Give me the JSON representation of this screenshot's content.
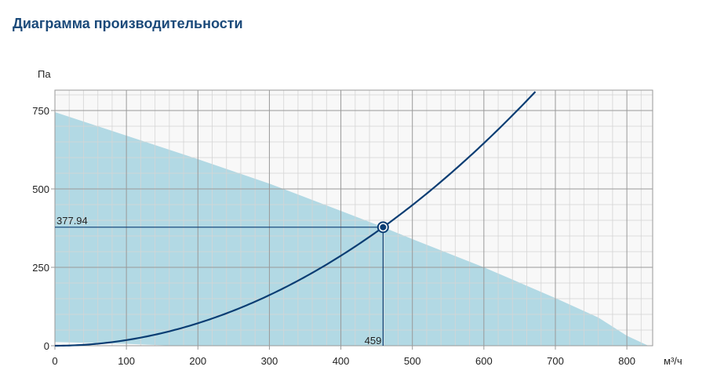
{
  "title": "Диаграмма производительности",
  "chart_data": {
    "type": "area",
    "ylabel": "Па",
    "xlabel": "м³/ч",
    "xlim": [
      0,
      835
    ],
    "ylim": [
      0,
      815
    ],
    "xticks": [
      0,
      100,
      200,
      300,
      400,
      500,
      600,
      700,
      800
    ],
    "yticks": [
      0,
      250,
      500,
      750
    ],
    "grid": true,
    "fan_curve": {
      "upper": {
        "x": [
          0,
          100,
          200,
          300,
          400,
          459,
          500,
          600,
          700,
          760,
          800,
          830
        ],
        "y": [
          745,
          670,
          595,
          517,
          430,
          378,
          340,
          250,
          152,
          90,
          32,
          0
        ]
      },
      "lower": {
        "x": [
          0,
          100,
          170
        ],
        "y": [
          12,
          6,
          0
        ]
      }
    },
    "system_curve": {
      "x": [
        0,
        100,
        200,
        300,
        400,
        459,
        500,
        600,
        674
      ],
      "y": [
        0,
        17.9,
        71.8,
        161.4,
        287,
        377.94,
        448.5,
        645.8,
        815
      ]
    },
    "operating_point": {
      "x": 459,
      "y": 377.94,
      "x_label": "459",
      "y_label": "377.94"
    },
    "colors": {
      "fill": "#b2d9e4",
      "curve": "#0a3d73",
      "grid_major": "#999999",
      "grid_minor": "#d4d4d4",
      "background": "#f8f8f8"
    }
  }
}
